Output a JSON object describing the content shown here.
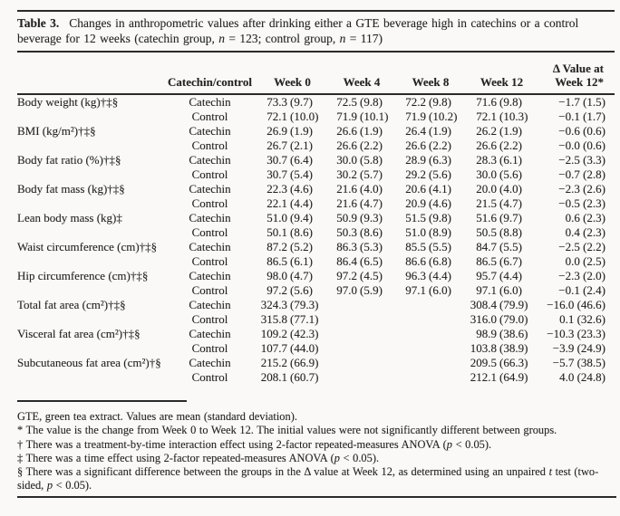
{
  "title": {
    "segments": [
      {
        "t": "Table 3.",
        "b": true,
        "i": false
      },
      {
        "t": "Changes in anthropometric values after drinking either a GTE beverage high in catechins or a control beverage for 12 weeks (catechin group, ",
        "b": false,
        "i": false
      },
      {
        "t": "n",
        "b": false,
        "i": true
      },
      {
        "t": " = 123; control group, ",
        "b": false,
        "i": false
      },
      {
        "t": "n",
        "b": false,
        "i": true
      },
      {
        "t": " = 117)",
        "b": false,
        "i": false
      }
    ]
  },
  "table": {
    "columns": {
      "parameter": "",
      "group": "Catechin/control",
      "week0": "Week 0",
      "week4": "Week 4",
      "week8": "Week 8",
      "week12": "Week 12",
      "delta_line1": "Δ Value at",
      "delta_line2": "Week 12*"
    },
    "rows": [
      {
        "label": "Body weight (kg)†‡§",
        "group": "Catechin",
        "week0": "73.3 (9.7)",
        "week4": "72.5 (9.8)",
        "week8": "72.2 (9.8)",
        "week12": "71.6 (9.8)",
        "delta": "−1.7 (1.5)"
      },
      {
        "label": "",
        "group": "Control",
        "week0": "72.1 (10.0)",
        "week4": "71.9 (10.1)",
        "week8": "71.9 (10.2)",
        "week12": "72.1 (10.3)",
        "delta": "−0.1 (1.7)"
      },
      {
        "label": "BMI (kg/m²)†‡§",
        "group": "Catechin",
        "week0": "26.9 (1.9)",
        "week4": "26.6 (1.9)",
        "week8": "26.4 (1.9)",
        "week12": "26.2 (1.9)",
        "delta": "−0.6 (0.6)"
      },
      {
        "label": "",
        "group": "Control",
        "week0": "26.7 (2.1)",
        "week4": "26.6 (2.2)",
        "week8": "26.6 (2.2)",
        "week12": "26.6 (2.2)",
        "delta": "−0.0 (0.6)"
      },
      {
        "label": "Body fat ratio (%)†‡§",
        "group": "Catechin",
        "week0": "30.7 (6.4)",
        "week4": "30.0 (5.8)",
        "week8": "28.9 (6.3)",
        "week12": "28.3 (6.1)",
        "delta": "−2.5 (3.3)"
      },
      {
        "label": "",
        "group": "Control",
        "week0": "30.7 (5.4)",
        "week4": "30.2 (5.7)",
        "week8": "29.2 (5.6)",
        "week12": "30.0 (5.6)",
        "delta": "−0.7 (2.8)"
      },
      {
        "label": "Body fat mass (kg)†‡§",
        "group": "Catechin",
        "week0": "22.3 (4.6)",
        "week4": "21.6 (4.0)",
        "week8": "20.6 (4.1)",
        "week12": "20.0 (4.0)",
        "delta": "−2.3 (2.6)"
      },
      {
        "label": "",
        "group": "Control",
        "week0": "22.1 (4.4)",
        "week4": "21.6 (4.7)",
        "week8": "20.9 (4.6)",
        "week12": "21.5 (4.7)",
        "delta": "−0.5 (2.3)"
      },
      {
        "label": "Lean body mass (kg)‡",
        "group": "Catechin",
        "week0": "51.0 (9.4)",
        "week4": "50.9 (9.3)",
        "week8": "51.5 (9.8)",
        "week12": "51.6 (9.7)",
        "delta": "0.6 (2.3)"
      },
      {
        "label": "",
        "group": "Control",
        "week0": "50.1 (8.6)",
        "week4": "50.3 (8.6)",
        "week8": "51.0 (8.9)",
        "week12": "50.5 (8.8)",
        "delta": "0.4 (2.3)"
      },
      {
        "label": "Waist circumference (cm)†‡§",
        "group": "Catechin",
        "week0": "87.2 (5.2)",
        "week4": "86.3 (5.3)",
        "week8": "85.5 (5.5)",
        "week12": "84.7 (5.5)",
        "delta": "−2.5 (2.2)"
      },
      {
        "label": "",
        "group": "Control",
        "week0": "86.5 (6.1)",
        "week4": "86.4 (6.5)",
        "week8": "86.6 (6.8)",
        "week12": "86.5 (6.7)",
        "delta": "0.0 (2.5)"
      },
      {
        "label": "Hip circumference (cm)†‡§",
        "group": "Catechin",
        "week0": "98.0 (4.7)",
        "week4": "97.2 (4.5)",
        "week8": "96.3 (4.4)",
        "week12": "95.7 (4.4)",
        "delta": "−2.3 (2.0)"
      },
      {
        "label": "",
        "group": "Control",
        "week0": "97.2 (5.6)",
        "week4": "97.0 (5.9)",
        "week8": "97.1 (6.0)",
        "week12": "97.1 (6.0)",
        "delta": "−0.1 (2.4)"
      },
      {
        "label": "Total fat area (cm²)†‡§",
        "group": "Catechin",
        "week0": "324.3 (79.3)",
        "week4": "",
        "week8": "",
        "week12": "308.4 (79.9)",
        "delta": "−16.0 (46.6)"
      },
      {
        "label": "",
        "group": "Control",
        "week0": "315.8 (77.1)",
        "week4": "",
        "week8": "",
        "week12": "316.0 (79.0)",
        "delta": "0.1 (32.6)"
      },
      {
        "label": "Visceral fat area (cm²)†‡§",
        "group": "Catechin",
        "week0": "109.2 (42.3)",
        "week4": "",
        "week8": "",
        "week12": "98.9 (38.6)",
        "delta": "−10.3 (23.3)"
      },
      {
        "label": "",
        "group": "Control",
        "week0": "107.7 (44.0)",
        "week4": "",
        "week8": "",
        "week12": "103.8 (38.9)",
        "delta": "−3.9 (24.9)"
      },
      {
        "label": "Subcutaneous fat area (cm²)†§",
        "group": "Catechin",
        "week0": "215.2 (66.9)",
        "week4": "",
        "week8": "",
        "week12": "209.5 (66.3)",
        "delta": "−5.7 (38.5)"
      },
      {
        "label": "",
        "group": "Control",
        "week0": "208.1 (60.7)",
        "week4": "",
        "week8": "",
        "week12": "212.1 (64.9)",
        "delta": "4.0 (24.8)"
      }
    ]
  },
  "footnotes": {
    "lines": [
      {
        "segments": [
          {
            "t": "GTE, green tea extract. Values are mean (standard deviation).",
            "i": false
          }
        ]
      },
      {
        "segments": [
          {
            "t": "* The value is the change from Week 0 to Week 12. The initial values were not significantly different between groups.",
            "i": false
          }
        ]
      },
      {
        "segments": [
          {
            "t": "† There was a treatment-by-time interaction effect using 2-factor repeated-measures ANOVA (",
            "i": false
          },
          {
            "t": "p",
            "i": true
          },
          {
            "t": " < 0.05).",
            "i": false
          }
        ]
      },
      {
        "segments": [
          {
            "t": "‡ There was a time effect using 2-factor repeated-measures ANOVA (",
            "i": false
          },
          {
            "t": "p",
            "i": true
          },
          {
            "t": " < 0.05).",
            "i": false
          }
        ]
      },
      {
        "segments": [
          {
            "t": "§ There was a significant difference between the groups in the Δ value at Week 12, as determined using an unpaired ",
            "i": false
          },
          {
            "t": "t",
            "i": true
          },
          {
            "t": " test (two-sided, ",
            "i": false
          },
          {
            "t": "p",
            "i": true
          },
          {
            "t": " < 0.05).",
            "i": false
          }
        ]
      }
    ]
  },
  "colors": {
    "rule": "#2a2a2a",
    "text": "#242424",
    "background": "#faf9f7"
  }
}
